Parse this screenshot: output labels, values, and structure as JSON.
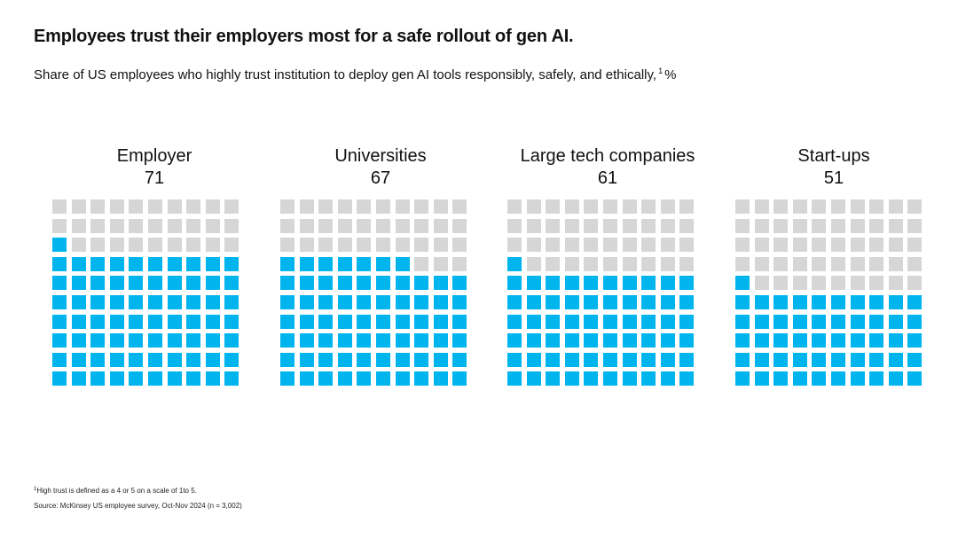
{
  "title": "Employees trust their employers most for a safe rollout of gen AI.",
  "subtitle": {
    "text": "Share of US employees who highly trust institution to deploy gen AI tools responsibly, safely,  and ethically,",
    "footnote_ref": "1",
    "unit": "%"
  },
  "colors": {
    "filled": "#00b4ee",
    "empty": "#d6d6d6"
  },
  "chart_data": {
    "type": "waffle",
    "grid": {
      "rows": 10,
      "cols": 10,
      "total": 100
    },
    "unit": "%",
    "categories": [
      "Employer",
      "Universities",
      "Large tech companies",
      "Start-ups"
    ],
    "values": [
      71,
      67,
      61,
      51
    ]
  },
  "footnotes": {
    "note_marker": "1",
    "note": "High trust is defined as a 4 or 5 on a scale of 1to 5.",
    "source": "Source: McKinsey US employee survey, Oct-Nov 2024  (n = 3,002)"
  }
}
